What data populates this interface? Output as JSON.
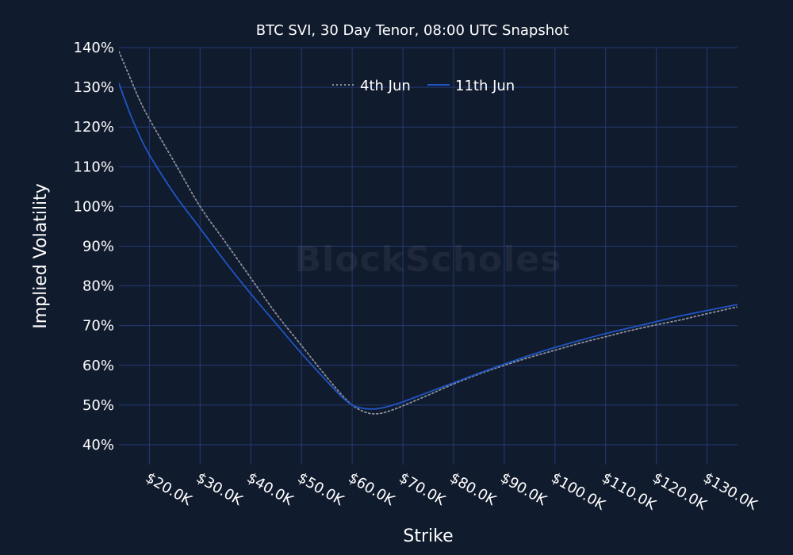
{
  "watermark": "BlockScholes",
  "colors": {
    "background": "#111b2e",
    "grid": "#243a72",
    "series_4th_jun": "#8a8f99",
    "series_11th_jun": "#1f55c4"
  },
  "chart_data": {
    "type": "line",
    "title": "BTC SVI, 30 Day Tenor, 08:00 UTC Snapshot",
    "xlabel": "Strike",
    "ylabel": "Implied Volatility",
    "xlim": [
      14000,
      136000
    ],
    "ylim": [
      35,
      140
    ],
    "x_ticks": [
      20000,
      30000,
      40000,
      50000,
      60000,
      70000,
      80000,
      90000,
      100000,
      110000,
      120000,
      130000
    ],
    "x_tick_labels": [
      "$20.0K",
      "$30.0K",
      "$40.0K",
      "$50.0K",
      "$60.0K",
      "$70.0K",
      "$80.0K",
      "$90.0K",
      "$100.0K",
      "$110.0K",
      "$120.0K",
      "$130.0K"
    ],
    "y_ticks": [
      40,
      50,
      60,
      70,
      80,
      90,
      100,
      110,
      120,
      130,
      140
    ],
    "y_tick_labels": [
      "40%",
      "50%",
      "60%",
      "70%",
      "80%",
      "90%",
      "100%",
      "110%",
      "120%",
      "130%",
      "140%"
    ],
    "grid": true,
    "legend_position": "top-center",
    "series": [
      {
        "name": "4th Jun",
        "style": "dotted",
        "color": "#8a8f99",
        "x": [
          14000,
          16000,
          18000,
          20000,
          25000,
          30000,
          35000,
          40000,
          45000,
          50000,
          55000,
          58000,
          60000,
          62000,
          64000,
          66000,
          68000,
          70000,
          75000,
          80000,
          85000,
          90000,
          95000,
          100000,
          105000,
          110000,
          115000,
          120000,
          125000,
          130000,
          136000
        ],
        "y": [
          139,
          133,
          127,
          122,
          111,
          100,
          91,
          82,
          73,
          65,
          57,
          52.5,
          50,
          48.5,
          47.8,
          48,
          48.8,
          49.8,
          52.5,
          55.3,
          57.8,
          60,
          62,
          63.8,
          65.6,
          67.2,
          68.8,
          70.2,
          71.5,
          73,
          74.7
        ]
      },
      {
        "name": "11th Jun",
        "style": "solid",
        "color": "#1f55c4",
        "x": [
          14000,
          16000,
          18000,
          20000,
          25000,
          30000,
          35000,
          40000,
          45000,
          50000,
          55000,
          58000,
          60000,
          62000,
          64000,
          66000,
          68000,
          70000,
          75000,
          80000,
          85000,
          90000,
          95000,
          100000,
          105000,
          110000,
          115000,
          120000,
          125000,
          130000,
          136000
        ],
        "y": [
          131,
          124,
          118,
          113,
          103,
          94.5,
          86,
          78,
          70.5,
          63,
          56,
          52,
          50,
          49.2,
          49,
          49.3,
          50,
          50.8,
          53.2,
          55.6,
          58,
          60.3,
          62.5,
          64.5,
          66.3,
          68,
          69.5,
          71,
          72.5,
          73.8,
          75.3
        ]
      }
    ]
  }
}
